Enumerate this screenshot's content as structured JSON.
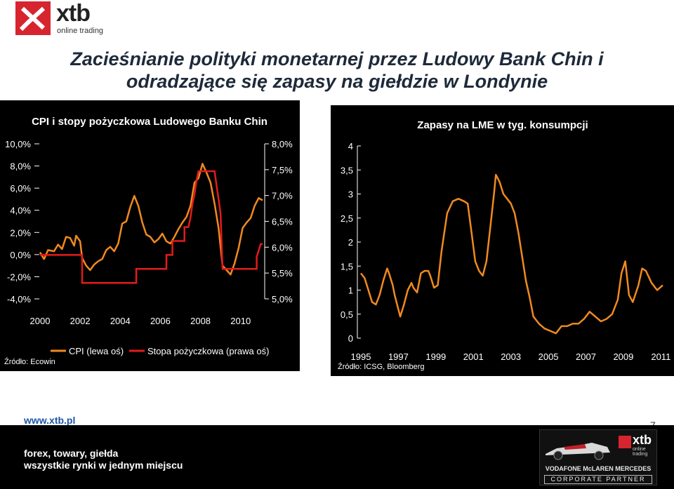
{
  "brand": {
    "name": "xtb",
    "sub": "online trading"
  },
  "title": {
    "line1": "Zacieśnianie polityki monetarnej przez Ludowy Bank Chin i",
    "line2": "odradzające się zapasy na giełdzie w Londynie"
  },
  "footer": {
    "url": "www.xtb.pl",
    "page": "7",
    "line1": "forex, towary, giełda",
    "line2": "wszystkie rynki w jednym  miejscu",
    "partner_brand": "xtb",
    "partner_sub": "online trading",
    "partner_team": "VODAFONE McLAREN MERCEDES",
    "partner_label": "CORPORATE PARTNER"
  },
  "colors": {
    "cpi": "#f08a1e",
    "rate": "#e31b1b",
    "lme": "#f08a1e",
    "accent": "#d6252f"
  },
  "chart_data": [
    {
      "type": "line",
      "title": "CPI i stopy pożyczkowa Ludowego Banku Chin",
      "source": "Źródło: Ecowin",
      "x_ticks": [
        "2000",
        "2002",
        "2004",
        "2006",
        "2008",
        "2010"
      ],
      "xlim": [
        2000,
        2011.2
      ],
      "left_axis": {
        "ticks": [
          "10,0%",
          "8,0%",
          "6,0%",
          "4,0%",
          "2,0%",
          "0,0%",
          "-2,0%",
          "-4,0%"
        ],
        "ylim": [
          -4,
          10
        ]
      },
      "right_axis": {
        "ticks": [
          "8,0%",
          "7,5%",
          "7,0%",
          "6,5%",
          "6,0%",
          "5,5%",
          "5,0%"
        ],
        "ylim": [
          5.0,
          8.0
        ]
      },
      "series": [
        {
          "name": "CPI (lewa oś)",
          "axis": "left",
          "points": [
            [
              2000.0,
              0.2
            ],
            [
              2000.2,
              -0.4
            ],
            [
              2000.4,
              0.4
            ],
            [
              2000.7,
              0.3
            ],
            [
              2000.9,
              0.9
            ],
            [
              2001.1,
              0.5
            ],
            [
              2001.3,
              1.6
            ],
            [
              2001.5,
              1.5
            ],
            [
              2001.7,
              0.8
            ],
            [
              2001.8,
              1.7
            ],
            [
              2002.0,
              1.2
            ],
            [
              2002.1,
              -0.3
            ],
            [
              2002.3,
              -1.0
            ],
            [
              2002.5,
              -1.4
            ],
            [
              2002.7,
              -0.9
            ],
            [
              2002.9,
              -0.6
            ],
            [
              2003.1,
              -0.4
            ],
            [
              2003.3,
              0.4
            ],
            [
              2003.5,
              0.7
            ],
            [
              2003.7,
              0.3
            ],
            [
              2003.9,
              1.0
            ],
            [
              2004.1,
              2.8
            ],
            [
              2004.3,
              3.0
            ],
            [
              2004.5,
              4.3
            ],
            [
              2004.7,
              5.3
            ],
            [
              2004.9,
              4.4
            ],
            [
              2005.1,
              2.9
            ],
            [
              2005.3,
              1.8
            ],
            [
              2005.5,
              1.6
            ],
            [
              2005.7,
              1.1
            ],
            [
              2005.9,
              1.4
            ],
            [
              2006.1,
              1.9
            ],
            [
              2006.3,
              1.2
            ],
            [
              2006.5,
              1.0
            ],
            [
              2006.7,
              1.6
            ],
            [
              2006.9,
              2.3
            ],
            [
              2007.1,
              2.9
            ],
            [
              2007.3,
              3.4
            ],
            [
              2007.5,
              4.4
            ],
            [
              2007.7,
              6.5
            ],
            [
              2007.9,
              6.9
            ],
            [
              2008.1,
              8.2
            ],
            [
              2008.3,
              7.4
            ],
            [
              2008.5,
              6.5
            ],
            [
              2008.7,
              4.6
            ],
            [
              2008.9,
              2.4
            ],
            [
              2009.1,
              -1.0
            ],
            [
              2009.3,
              -1.4
            ],
            [
              2009.5,
              -1.8
            ],
            [
              2009.7,
              -0.8
            ],
            [
              2009.9,
              0.6
            ],
            [
              2010.1,
              2.4
            ],
            [
              2010.3,
              2.9
            ],
            [
              2010.5,
              3.3
            ],
            [
              2010.7,
              4.4
            ],
            [
              2010.9,
              5.1
            ],
            [
              2011.1,
              4.9
            ]
          ]
        },
        {
          "name": "Stopa pożyczkowa (prawa oś)",
          "axis": "right",
          "points": [
            [
              2000.0,
              5.85
            ],
            [
              2002.1,
              5.85
            ],
            [
              2002.1,
              5.31
            ],
            [
              2004.8,
              5.31
            ],
            [
              2004.8,
              5.58
            ],
            [
              2006.3,
              5.58
            ],
            [
              2006.3,
              5.85
            ],
            [
              2006.6,
              5.85
            ],
            [
              2006.6,
              6.12
            ],
            [
              2007.2,
              6.12
            ],
            [
              2007.2,
              6.39
            ],
            [
              2007.4,
              6.39
            ],
            [
              2007.5,
              6.57
            ],
            [
              2007.6,
              6.84
            ],
            [
              2007.7,
              7.02
            ],
            [
              2007.8,
              7.29
            ],
            [
              2007.9,
              7.47
            ],
            [
              2008.7,
              7.47
            ],
            [
              2008.8,
              7.2
            ],
            [
              2008.9,
              6.93
            ],
            [
              2009.0,
              6.66
            ],
            [
              2009.1,
              5.58
            ],
            [
              2010.8,
              5.58
            ],
            [
              2010.8,
              5.81
            ],
            [
              2011.0,
              6.06
            ],
            [
              2011.1,
              6.06
            ]
          ]
        }
      ]
    },
    {
      "type": "line",
      "title": "Zapasy na LME w tyg. konsumpcji",
      "source": "Źródło: ICSG, Bloomberg",
      "x_ticks": [
        "1995",
        "1997",
        "1999",
        "2001",
        "2003",
        "2005",
        "2007",
        "2009",
        "2011"
      ],
      "xlim": [
        1995,
        2011.1
      ],
      "y_ticks": [
        "4",
        "3,5",
        "3",
        "2,5",
        "2",
        "1,5",
        "1",
        "0,5",
        "0"
      ],
      "ylim": [
        0,
        4
      ],
      "series": [
        {
          "name": "",
          "points": [
            [
              1995.0,
              1.35
            ],
            [
              1995.2,
              1.25
            ],
            [
              1995.4,
              1.0
            ],
            [
              1995.6,
              0.75
            ],
            [
              1995.8,
              0.7
            ],
            [
              1996.0,
              0.9
            ],
            [
              1996.2,
              1.2
            ],
            [
              1996.4,
              1.45
            ],
            [
              1996.5,
              1.35
            ],
            [
              1996.7,
              1.1
            ],
            [
              1996.8,
              0.9
            ],
            [
              1997.0,
              0.6
            ],
            [
              1997.1,
              0.45
            ],
            [
              1997.3,
              0.7
            ],
            [
              1997.5,
              1.0
            ],
            [
              1997.7,
              1.15
            ],
            [
              1997.8,
              1.05
            ],
            [
              2002.2,
              3.4
            ],
            [
              1998.0,
              0.95
            ],
            [
              1998.2,
              1.35
            ],
            [
              1998.4,
              1.4
            ],
            [
              1998.6,
              1.4
            ],
            [
              1998.7,
              1.3
            ],
            [
              1998.9,
              1.05
            ],
            [
              1999.1,
              1.1
            ],
            [
              1999.3,
              1.8
            ],
            [
              1999.6,
              2.6
            ],
            [
              1999.9,
              2.85
            ],
            [
              2000.2,
              2.9
            ],
            [
              2000.5,
              2.85
            ],
            [
              2000.7,
              2.8
            ],
            [
              2000.9,
              2.2
            ],
            [
              2001.1,
              1.6
            ],
            [
              2001.3,
              1.4
            ],
            [
              2001.5,
              1.3
            ],
            [
              2001.7,
              1.6
            ],
            [
              2001.9,
              2.3
            ],
            [
              2002.1,
              3.0
            ],
            [
              2002.4,
              3.25
            ],
            [
              2002.6,
              3.0
            ],
            [
              2002.8,
              2.9
            ],
            [
              2003.0,
              2.8
            ],
            [
              2003.2,
              2.6
            ],
            [
              2003.4,
              2.2
            ],
            [
              2003.6,
              1.7
            ],
            [
              2003.8,
              1.2
            ],
            [
              2004.0,
              0.85
            ],
            [
              2004.2,
              0.45
            ],
            [
              2004.5,
              0.3
            ],
            [
              2004.8,
              0.2
            ],
            [
              2005.1,
              0.15
            ],
            [
              2005.4,
              0.1
            ],
            [
              2005.7,
              0.25
            ],
            [
              2006.0,
              0.25
            ],
            [
              2006.3,
              0.3
            ],
            [
              2006.6,
              0.3
            ],
            [
              2006.9,
              0.4
            ],
            [
              2007.2,
              0.55
            ],
            [
              2007.5,
              0.45
            ],
            [
              2007.8,
              0.35
            ],
            [
              2008.1,
              0.4
            ],
            [
              2008.4,
              0.5
            ],
            [
              2008.7,
              0.8
            ],
            [
              2008.9,
              1.35
            ],
            [
              2009.1,
              1.6
            ],
            [
              2009.3,
              0.9
            ],
            [
              2009.5,
              0.75
            ],
            [
              2009.8,
              1.1
            ],
            [
              2010.0,
              1.45
            ],
            [
              2010.2,
              1.4
            ],
            [
              2010.5,
              1.15
            ],
            [
              2010.8,
              1.0
            ],
            [
              2011.1,
              1.1
            ]
          ]
        }
      ]
    }
  ]
}
